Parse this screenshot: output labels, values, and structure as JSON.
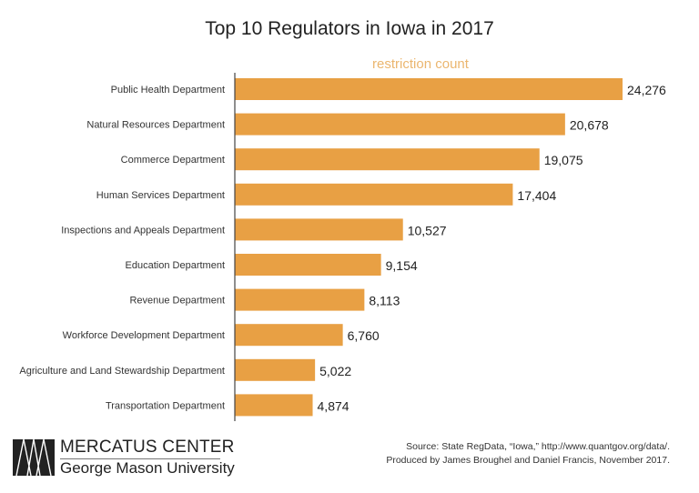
{
  "chart_data": {
    "type": "bar",
    "orientation": "horizontal",
    "title": "Top 10 Regulators in Iowa in 2017",
    "xlabel": "restriction count",
    "categories": [
      "Public Health Department",
      "Natural Resources Department",
      "Commerce Department",
      "Human Services Department",
      "Inspections and Appeals Department",
      "Education Department",
      "Revenue Department",
      "Workforce Development Department",
      "Agriculture and Land Stewardship Department",
      "Transportation Department"
    ],
    "values": [
      24276,
      20678,
      19075,
      17404,
      10527,
      9154,
      8113,
      6760,
      5022,
      4874
    ],
    "value_labels": [
      "24,276",
      "20,678",
      "19,075",
      "17,404",
      "10,527",
      "9,154",
      "8,113",
      "6,760",
      "5,022",
      "4,874"
    ],
    "xlim": [
      0,
      24276
    ],
    "grid": false,
    "bar_color": "#E8A044",
    "xlabel_color": "#EBB66F"
  },
  "footer": {
    "source_line1": "Source: State RegData, “Iowa,” http://www.quantgov.org/data/.",
    "source_line2": "Produced by James Broughel and Daniel Francis, November 2017.",
    "logo_line1": "MERCATUS CENTER",
    "logo_line2": "George Mason University"
  }
}
